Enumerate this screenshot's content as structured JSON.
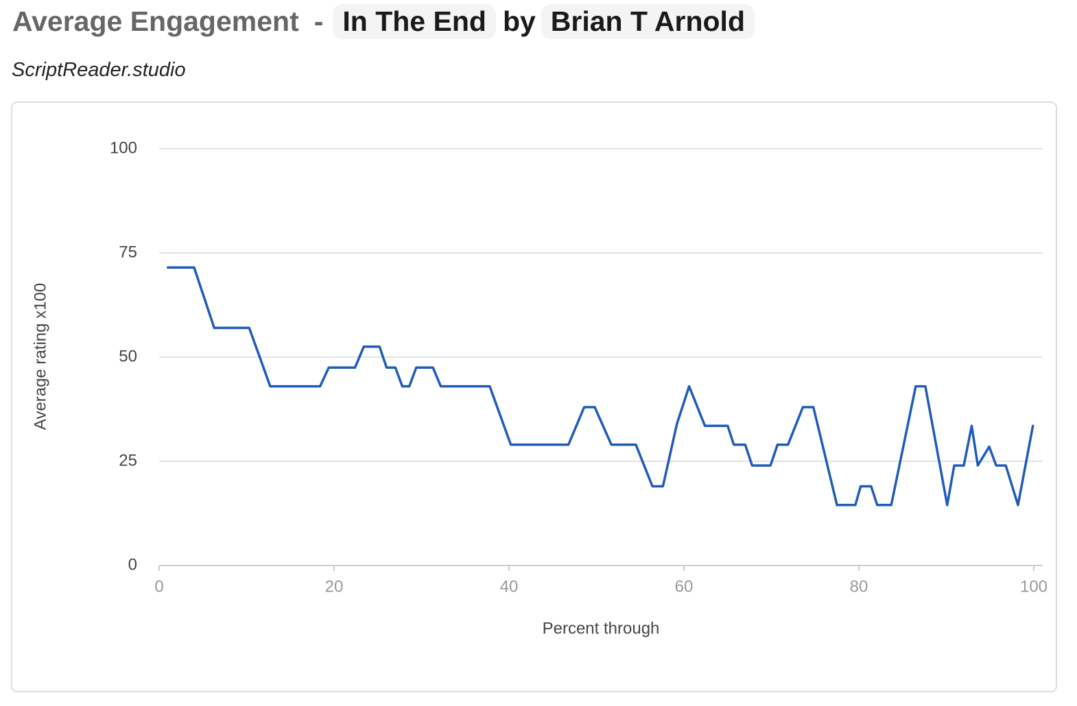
{
  "header": {
    "title": "Average Engagement",
    "separator": "-",
    "script": "In The End",
    "by": "by",
    "author": "Brian T Arnold",
    "subtitle": "ScriptReader.studio"
  },
  "chart_data": {
    "type": "line",
    "x_label": "Percent through",
    "y_label": "Average rating x100",
    "x": [
      1,
      4,
      6.3,
      10.3,
      12.7,
      18.4,
      19.4,
      22.4,
      23.4,
      25.2,
      26,
      27,
      27.8,
      28.6,
      29.4,
      31.3,
      32.2,
      37.8,
      40.2,
      46.8,
      48.6,
      49.8,
      51.7,
      54.5,
      56.4,
      57.6,
      59.2,
      60.6,
      62.4,
      65,
      65.7,
      67,
      67.8,
      69.9,
      70.7,
      71.9,
      73.6,
      74.8,
      77.5,
      79.6,
      80.2,
      81.4,
      82.1,
      83.7,
      86.5,
      87.6,
      90.1,
      90.9,
      92,
      92.9,
      93.6,
      94.9,
      95.7,
      96.8,
      98.2,
      99.9
    ],
    "series": [
      {
        "name": "Average rating x100",
        "color": "#1f5bb8",
        "values": [
          71.5,
          71.5,
          57,
          57,
          43,
          43,
          47.5,
          47.5,
          52.5,
          52.5,
          47.5,
          47.5,
          43,
          43,
          47.5,
          47.5,
          43,
          43,
          29,
          29,
          38,
          38,
          29,
          29,
          19,
          19,
          34,
          43,
          33.5,
          33.5,
          29,
          29,
          24,
          24,
          29,
          29,
          38,
          38,
          14.5,
          14.5,
          19,
          19,
          14.5,
          14.5,
          43,
          43,
          14.5,
          24,
          24,
          33.5,
          24,
          28.5,
          24,
          24,
          14.5,
          33.5
        ]
      }
    ],
    "xlim": [
      0,
      100
    ],
    "xticks": [
      0,
      20,
      40,
      60,
      80,
      100
    ],
    "ylim": [
      0,
      100
    ],
    "yticks": [
      0,
      25,
      50,
      75,
      100
    ],
    "grid": true
  }
}
